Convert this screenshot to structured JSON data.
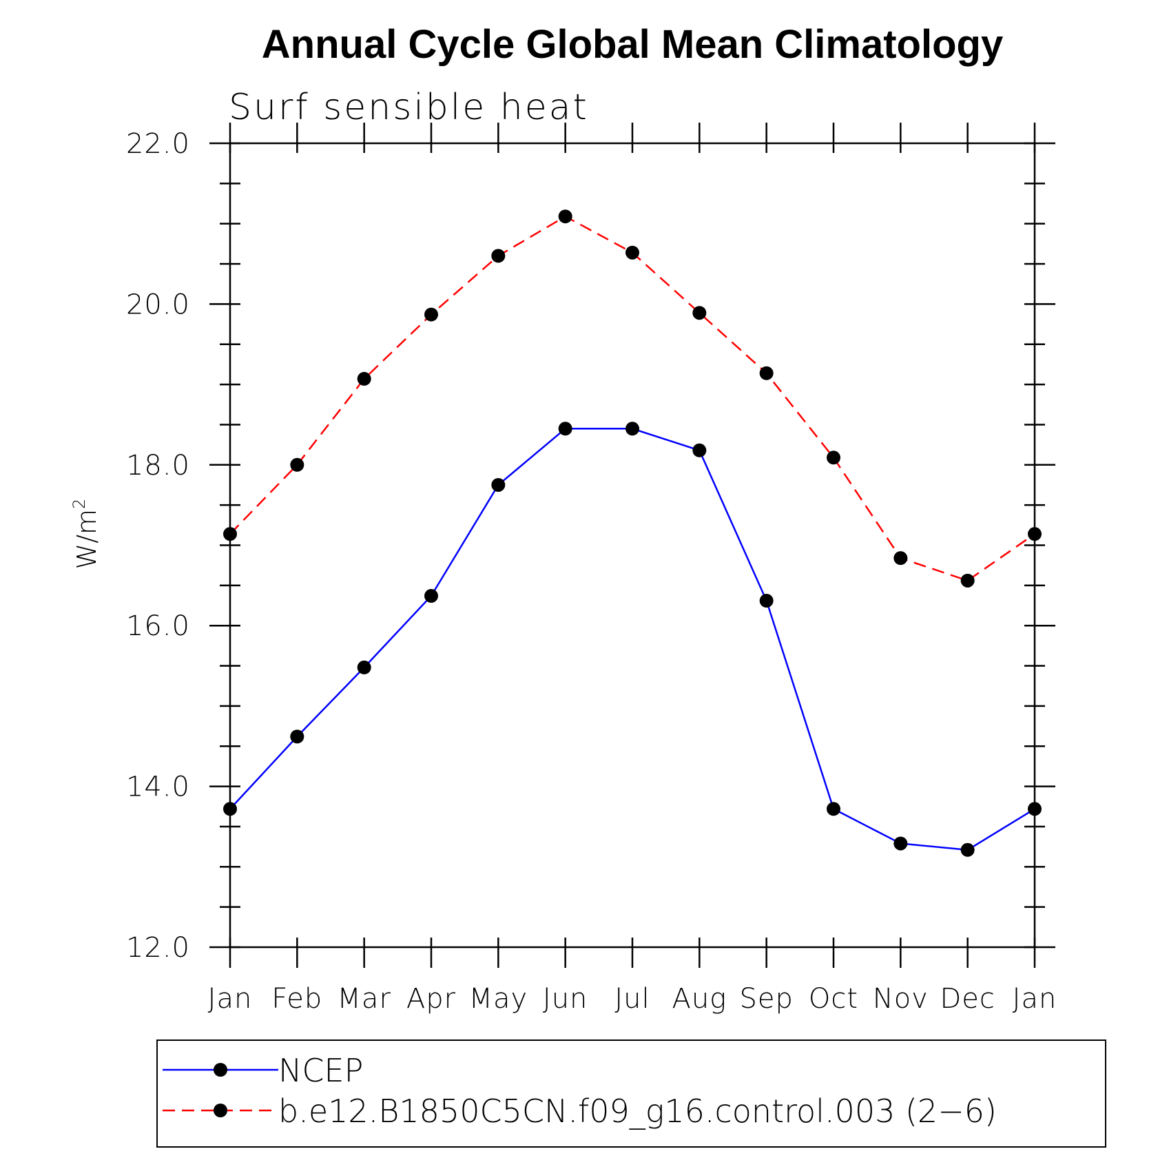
{
  "chart_data": {
    "type": "line",
    "title": "Annual Cycle Global Mean Climatology",
    "subtitle": "Surf sensible heat",
    "ylabel": "W/m",
    "ylabel_superscript": "2",
    "xlabel": "",
    "ylim": [
      12.0,
      22.0
    ],
    "yticks": [
      "12.0",
      "14.0",
      "16.0",
      "18.0",
      "20.0",
      "22.0"
    ],
    "yticks_values": [
      12,
      14,
      16,
      18,
      20,
      22
    ],
    "ytick_minor_step": 0.5,
    "categories": [
      "Jan",
      "Feb",
      "Mar",
      "Apr",
      "May",
      "Jun",
      "Jul",
      "Aug",
      "Sep",
      "Oct",
      "Nov",
      "Dec",
      "Jan"
    ],
    "grid": false,
    "legend_placement": "bottom",
    "series": [
      {
        "name": "NCEP",
        "color": "#0000ff",
        "line_style": "solid",
        "marker_color": "#000000",
        "values": [
          13.72,
          14.62,
          15.48,
          16.37,
          17.75,
          18.45,
          18.45,
          18.18,
          16.31,
          13.72,
          13.29,
          13.21,
          13.72
        ]
      },
      {
        "name": "b.e12.B1850C5CN.f09_g16.control.003 (2−6)",
        "color": "#ff0000",
        "line_style": "dashed",
        "marker_color": "#000000",
        "values": [
          17.14,
          18.0,
          19.07,
          19.87,
          20.6,
          21.09,
          20.64,
          19.89,
          19.14,
          18.09,
          16.84,
          16.56,
          17.14
        ]
      }
    ]
  }
}
